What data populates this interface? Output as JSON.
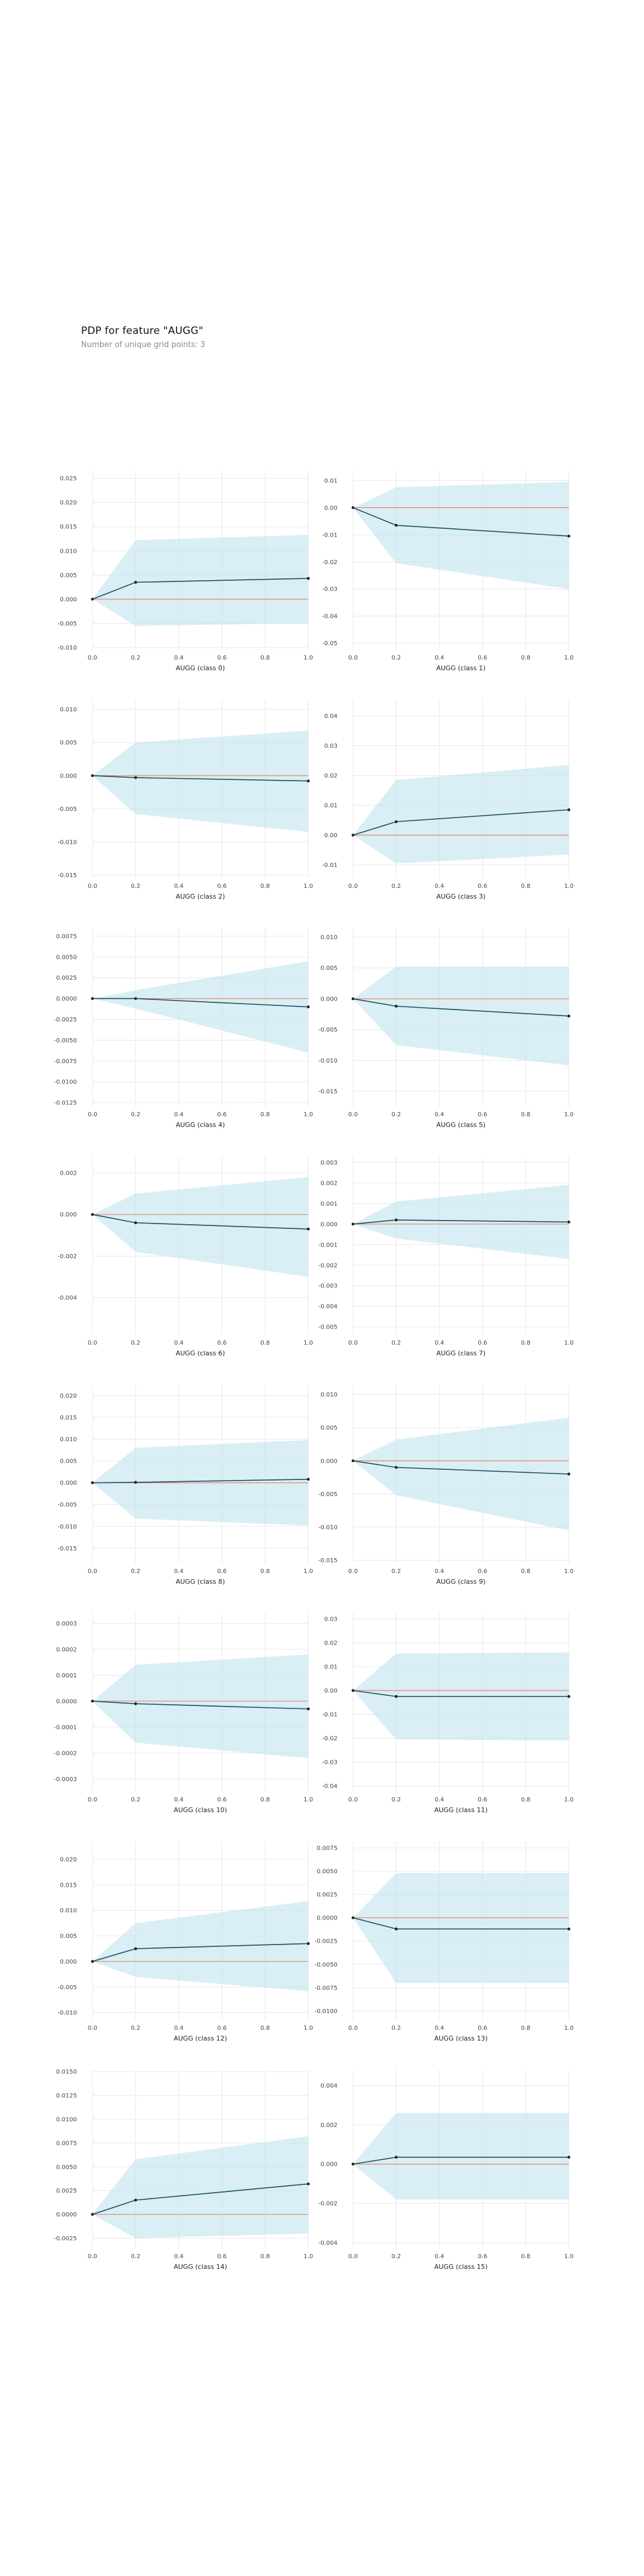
{
  "header": {
    "title": "PDP for feature \"AUGG\"",
    "subtitle": "Number of unique grid points: 3"
  },
  "colors": {
    "band": "#bfe2ef",
    "pdp_line": "#1a4c5c",
    "reference_line": "#e8846a",
    "grid": "#e8e8e8",
    "marker": "#222222"
  },
  "chart_data": [
    {
      "type": "line",
      "xlabel": "AUGG (class 0)",
      "x": [
        0.0,
        0.2,
        1.0
      ],
      "y": [
        0.0,
        0.0035,
        0.0043
      ],
      "band_upper": [
        0.0,
        0.0122,
        0.0133
      ],
      "band_lower": [
        0.0,
        -0.0055,
        -0.005
      ],
      "reference": 0,
      "ylim": [
        -0.0105,
        0.0265
      ],
      "yticks": [
        "0.025",
        "0.020",
        "0.015",
        "0.010",
        "0.005",
        "0.000",
        "-0.005",
        "-0.010"
      ],
      "xticks": [
        "0.0",
        "0.2",
        "0.4",
        "0.6",
        "0.8",
        "1.0"
      ]
    },
    {
      "type": "line",
      "xlabel": "AUGG (class 1)",
      "x": [
        0.0,
        0.2,
        1.0
      ],
      "y": [
        0.0,
        -0.0065,
        -0.0105
      ],
      "band_upper": [
        0.0,
        0.0075,
        0.0095
      ],
      "band_lower": [
        0.0,
        -0.0205,
        -0.03
      ],
      "reference": 0,
      "ylim": [
        -0.0525,
        0.0135
      ],
      "yticks": [
        "0.01",
        "0.00",
        "-0.01",
        "-0.02",
        "-0.03",
        "-0.04",
        "-0.05"
      ],
      "xticks": [
        "0.0",
        "0.2",
        "0.4",
        "0.6",
        "0.8",
        "1.0"
      ]
    },
    {
      "type": "line",
      "xlabel": "AUGG (class 2)",
      "x": [
        0.0,
        0.2,
        1.0
      ],
      "y": [
        0.0,
        -0.0003,
        -0.0008
      ],
      "band_upper": [
        0.0,
        0.005,
        0.0068
      ],
      "band_lower": [
        0.0,
        -0.0058,
        -0.0085
      ],
      "reference": 0,
      "ylim": [
        -0.0155,
        0.0115
      ],
      "yticks": [
        "0.010",
        "0.005",
        "0.000",
        "-0.005",
        "-0.010",
        "-0.015"
      ],
      "xticks": [
        "0.0",
        "0.2",
        "0.4",
        "0.6",
        "0.8",
        "1.0"
      ]
    },
    {
      "type": "line",
      "xlabel": "AUGG (class 3)",
      "x": [
        0.0,
        0.2,
        1.0
      ],
      "y": [
        0.0,
        0.0045,
        0.0085
      ],
      "band_upper": [
        0.0,
        0.0185,
        0.0235
      ],
      "band_lower": [
        0.0,
        -0.0095,
        -0.0065
      ],
      "reference": 0,
      "ylim": [
        -0.0145,
        0.0455
      ],
      "yticks": [
        "0.04",
        "0.03",
        "0.02",
        "0.01",
        "0.00",
        "-0.01"
      ],
      "xticks": [
        "0.0",
        "0.2",
        "0.4",
        "0.6",
        "0.8",
        "1.0"
      ]
    },
    {
      "type": "line",
      "xlabel": "AUGG (class 4)",
      "x": [
        0.0,
        0.2,
        1.0
      ],
      "y": [
        0.0,
        0.0,
        -0.001
      ],
      "band_upper": [
        0.0,
        0.001,
        0.0045
      ],
      "band_lower": [
        0.0,
        -0.0012,
        -0.0065
      ],
      "reference": 0,
      "ylim": [
        -0.013,
        0.0085
      ],
      "yticks": [
        "0.0075",
        "0.0050",
        "0.0025",
        "0.0000",
        "-0.0025",
        "-0.0050",
        "-0.0075",
        "-0.0100",
        "-0.0125"
      ],
      "xticks": [
        "0.0",
        "0.2",
        "0.4",
        "0.6",
        "0.8",
        "1.0"
      ]
    },
    {
      "type": "line",
      "xlabel": "AUGG (class 5)",
      "x": [
        0.0,
        0.2,
        1.0
      ],
      "y": [
        0.0,
        -0.0012,
        -0.0028
      ],
      "band_upper": [
        0.0,
        0.0052,
        0.0052
      ],
      "band_lower": [
        0.0,
        -0.0075,
        -0.0108
      ],
      "reference": 0,
      "ylim": [
        -0.0175,
        0.0115
      ],
      "yticks": [
        "0.010",
        "0.005",
        "0.000",
        "-0.005",
        "-0.010",
        "-0.015"
      ],
      "xticks": [
        "0.0",
        "0.2",
        "0.4",
        "0.6",
        "0.8",
        "1.0"
      ]
    },
    {
      "type": "line",
      "xlabel": "AUGG (class 6)",
      "x": [
        0.0,
        0.2,
        1.0
      ],
      "y": [
        0.0,
        -0.0004,
        -0.0007
      ],
      "band_upper": [
        0.0,
        0.001,
        0.0018
      ],
      "band_lower": [
        0.0,
        -0.0018,
        -0.003
      ],
      "reference": 0,
      "ylim": [
        -0.0058,
        0.0028
      ],
      "yticks": [
        "0.002",
        "0.000",
        "-0.002",
        "-0.004"
      ],
      "xticks": [
        "0.0",
        "0.2",
        "0.4",
        "0.6",
        "0.8",
        "1.0"
      ]
    },
    {
      "type": "line",
      "xlabel": "AUGG (class 7)",
      "x": [
        0.0,
        0.2,
        1.0
      ],
      "y": [
        0.0,
        0.0002,
        0.0001
      ],
      "band_upper": [
        0.0,
        0.0011,
        0.0019
      ],
      "band_lower": [
        0.0,
        -0.0007,
        -0.0017
      ],
      "reference": 0,
      "ylim": [
        -0.0054,
        0.0033
      ],
      "yticks": [
        "0.003",
        "0.002",
        "0.001",
        "0.000",
        "-0.001",
        "-0.002",
        "-0.003",
        "-0.004",
        "-0.005"
      ],
      "xticks": [
        "0.0",
        "0.2",
        "0.4",
        "0.6",
        "0.8",
        "1.0"
      ]
    },
    {
      "type": "line",
      "xlabel": "AUGG (class 8)",
      "x": [
        0.0,
        0.2,
        1.0
      ],
      "y": [
        0.0,
        0.0001,
        0.0008
      ],
      "band_upper": [
        0.0,
        0.008,
        0.0098
      ],
      "band_lower": [
        0.0,
        -0.0082,
        -0.0098
      ],
      "reference": 0,
      "ylim": [
        -0.0185,
        0.0225
      ],
      "yticks": [
        "0.020",
        "0.015",
        "0.010",
        "0.005",
        "0.000",
        "-0.005",
        "-0.010",
        "-0.015"
      ],
      "xticks": [
        "0.0",
        "0.2",
        "0.4",
        "0.6",
        "0.8",
        "1.0"
      ]
    },
    {
      "type": "line",
      "xlabel": "AUGG (class 9)",
      "x": [
        0.0,
        0.2,
        1.0
      ],
      "y": [
        0.0,
        -0.001,
        -0.002
      ],
      "band_upper": [
        0.0,
        0.0032,
        0.0065
      ],
      "band_lower": [
        0.0,
        -0.0052,
        -0.0105
      ],
      "reference": 0,
      "ylim": [
        -0.0155,
        0.0115
      ],
      "yticks": [
        "0.010",
        "0.005",
        "0.000",
        "-0.005",
        "-0.010",
        "-0.015"
      ],
      "xticks": [
        "0.0",
        "0.2",
        "0.4",
        "0.6",
        "0.8",
        "1.0"
      ]
    },
    {
      "type": "line",
      "xlabel": "AUGG (class 10)",
      "x": [
        0.0,
        0.2,
        1.0
      ],
      "y": [
        0.0,
        -1e-05,
        -3e-05
      ],
      "band_upper": [
        0.0,
        0.00014,
        0.00018
      ],
      "band_lower": [
        0.0,
        -0.00016,
        -0.00022
      ],
      "reference": 0,
      "ylim": [
        -0.00035,
        0.00034
      ],
      "yticks": [
        "0.0003",
        "0.0002",
        "0.0001",
        "0.0000",
        "-0.0001",
        "-0.0002",
        "-0.0003"
      ],
      "xticks": [
        "0.0",
        "0.2",
        "0.4",
        "0.6",
        "0.8",
        "1.0"
      ]
    },
    {
      "type": "line",
      "xlabel": "AUGG (class 11)",
      "x": [
        0.0,
        0.2,
        1.0
      ],
      "y": [
        0.0,
        -0.0025,
        -0.0025
      ],
      "band_upper": [
        0.0,
        0.0155,
        0.016
      ],
      "band_lower": [
        0.0,
        -0.0205,
        -0.021
      ],
      "reference": 0,
      "ylim": [
        -0.0425,
        0.0325
      ],
      "yticks": [
        "0.03",
        "0.02",
        "0.01",
        "0.00",
        "-0.01",
        "-0.02",
        "-0.03",
        "-0.04"
      ],
      "xticks": [
        "0.0",
        "0.2",
        "0.4",
        "0.6",
        "0.8",
        "1.0"
      ]
    },
    {
      "type": "line",
      "xlabel": "AUGG (class 12)",
      "x": [
        0.0,
        0.2,
        1.0
      ],
      "y": [
        0.0,
        0.0025,
        0.0035
      ],
      "band_upper": [
        0.0,
        0.0075,
        0.0118
      ],
      "band_lower": [
        0.0,
        -0.003,
        -0.0058
      ],
      "reference": 0,
      "ylim": [
        -0.0115,
        0.0235
      ],
      "yticks": [
        "0.020",
        "0.015",
        "0.010",
        "0.005",
        "0.000",
        "-0.005",
        "-0.010"
      ],
      "xticks": [
        "0.0",
        "0.2",
        "0.4",
        "0.6",
        "0.8",
        "1.0"
      ]
    },
    {
      "type": "line",
      "xlabel": "AUGG (class 13)",
      "x": [
        0.0,
        0.2,
        1.0
      ],
      "y": [
        0.0,
        -0.0012,
        -0.0012
      ],
      "band_upper": [
        0.0,
        0.0048,
        0.0048
      ],
      "band_lower": [
        0.0,
        -0.007,
        -0.007
      ],
      "reference": 0,
      "ylim": [
        -0.011,
        0.0082
      ],
      "yticks": [
        "0.0075",
        "0.0050",
        "0.0025",
        "0.0000",
        "-0.0025",
        "-0.0050",
        "-0.0075",
        "-0.0100"
      ],
      "xticks": [
        "0.0",
        "0.2",
        "0.4",
        "0.6",
        "0.8",
        "1.0"
      ]
    },
    {
      "type": "line",
      "xlabel": "AUGG (class 14)",
      "x": [
        0.0,
        0.2,
        1.0
      ],
      "y": [
        0.0,
        0.0015,
        0.0032
      ],
      "band_upper": [
        0.0,
        0.0058,
        0.0082
      ],
      "band_lower": [
        0.0,
        -0.0025,
        -0.002
      ],
      "reference": 0,
      "ylim": [
        -0.0036,
        0.0152
      ],
      "yticks": [
        "0.0150",
        "0.0125",
        "0.0100",
        "0.0075",
        "0.0050",
        "0.0025",
        "0.0000",
        "-0.0025"
      ],
      "xticks": [
        "0.0",
        "0.2",
        "0.4",
        "0.6",
        "0.8",
        "1.0"
      ]
    },
    {
      "type": "line",
      "xlabel": "AUGG (class 15)",
      "x": [
        0.0,
        0.2,
        1.0
      ],
      "y": [
        0.0,
        0.00035,
        0.00035
      ],
      "band_upper": [
        0.0,
        0.0026,
        0.0026
      ],
      "band_lower": [
        0.0,
        -0.0018,
        -0.0018
      ],
      "reference": 0,
      "ylim": [
        -0.0043,
        0.0048
      ],
      "yticks": [
        "0.004",
        "0.002",
        "0.000",
        "-0.002",
        "-0.004"
      ],
      "xticks": [
        "0.0",
        "0.2",
        "0.4",
        "0.6",
        "0.8",
        "1.0"
      ]
    }
  ]
}
